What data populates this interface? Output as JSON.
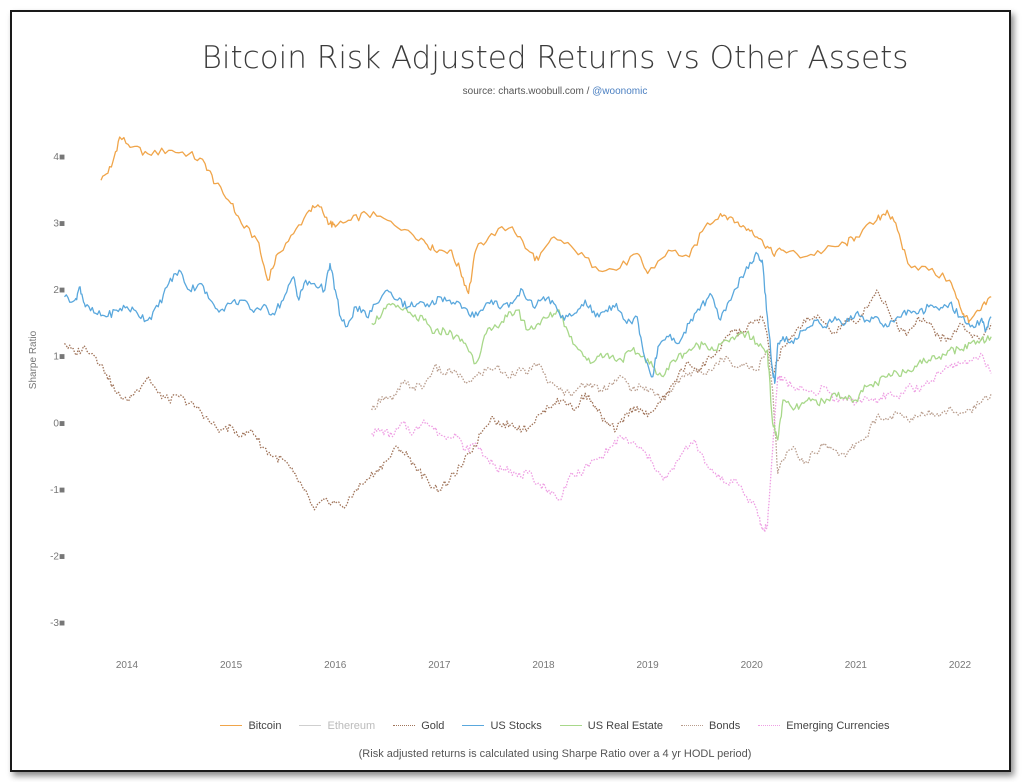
{
  "header": {
    "title": "Bitcoin Risk Adjusted Returns vs Other Assets",
    "source_prefix": "source: charts.woobull.com / ",
    "source_handle": "@woonomic"
  },
  "footnote": "(Risk adjusted returns is calculated using Sharpe Ratio over a 4 yr HODL period)",
  "chart_data": {
    "type": "line",
    "ylabel": "Sharpe Ratio",
    "ylim": [
      -3,
      4
    ],
    "y_ticks": [
      4,
      3,
      2,
      1,
      0,
      -1,
      -2,
      -3
    ],
    "y_tick_labels": [
      "4■",
      "3■",
      "2■",
      "1■",
      "0■",
      "-1■",
      "-2■",
      "-3■"
    ],
    "xlim": [
      2013.4,
      2022.3
    ],
    "x_ticks": [
      2014,
      2015,
      2016,
      2017,
      2018,
      2019,
      2020,
      2021,
      2022
    ],
    "x_tick_labels": [
      "2014",
      "2015",
      "2016",
      "2017",
      "2018",
      "2019",
      "2020",
      "2021",
      "2022"
    ],
    "series": [
      {
        "name": "Bitcoin",
        "color": "#f0a54a",
        "dash": "solid",
        "x": [
          2013.75,
          2013.85,
          2013.93,
          2014.05,
          2014.2,
          2014.4,
          2014.6,
          2014.75,
          2014.85,
          2015.0,
          2015.1,
          2015.25,
          2015.35,
          2015.45,
          2015.6,
          2015.75,
          2015.85,
          2015.95,
          2016.0,
          2016.15,
          2016.3,
          2016.5,
          2016.7,
          2016.85,
          2016.95,
          2017.1,
          2017.2,
          2017.28,
          2017.35,
          2017.5,
          2017.7,
          2017.85,
          2017.95,
          2018.1,
          2018.3,
          2018.5,
          2018.7,
          2018.9,
          2019.0,
          2019.2,
          2019.4,
          2019.55,
          2019.7,
          2019.8,
          2019.9,
          2020.0,
          2020.1,
          2020.2,
          2020.3,
          2020.5,
          2020.7,
          2020.9,
          2021.0,
          2021.2,
          2021.3,
          2021.4,
          2021.5,
          2021.7,
          2021.9,
          2022.0,
          2022.05,
          2022.1,
          2022.2,
          2022.3
        ],
        "y": [
          3.65,
          3.85,
          4.3,
          4.15,
          4.05,
          4.1,
          4.05,
          3.9,
          3.6,
          3.3,
          3.0,
          2.75,
          2.15,
          2.55,
          2.85,
          3.2,
          3.25,
          3.0,
          2.95,
          3.05,
          3.15,
          3.05,
          2.9,
          2.75,
          2.6,
          2.6,
          2.3,
          1.95,
          2.6,
          2.85,
          2.95,
          2.6,
          2.45,
          2.8,
          2.6,
          2.35,
          2.3,
          2.55,
          2.25,
          2.6,
          2.5,
          2.95,
          3.15,
          3.1,
          2.95,
          2.9,
          2.75,
          2.55,
          2.6,
          2.5,
          2.6,
          2.7,
          2.8,
          3.05,
          3.2,
          2.9,
          2.4,
          2.3,
          2.15,
          1.75,
          1.6,
          1.55,
          1.7,
          1.9
        ]
      },
      {
        "name": "Ethereum",
        "color": "#cfcfcf",
        "dash": "solid",
        "x": [],
        "y": []
      },
      {
        "name": "Gold",
        "color": "#a0745a",
        "dash": "dotted",
        "x": [
          2013.4,
          2013.5,
          2013.6,
          2013.7,
          2013.8,
          2013.9,
          2014.0,
          2014.1,
          2014.2,
          2014.3,
          2014.4,
          2014.5,
          2014.6,
          2014.7,
          2014.8,
          2014.9,
          2015.0,
          2015.1,
          2015.2,
          2015.3,
          2015.4,
          2015.5,
          2015.6,
          2015.7,
          2015.8,
          2015.9,
          2016.0,
          2016.1,
          2016.2,
          2016.3,
          2016.4,
          2016.5,
          2016.6,
          2016.7,
          2016.8,
          2016.9,
          2017.0,
          2017.1,
          2017.2,
          2017.3,
          2017.4,
          2017.5,
          2017.6,
          2017.7,
          2017.8,
          2017.9,
          2018.0,
          2018.1,
          2018.2,
          2018.3,
          2018.4,
          2018.5,
          2018.6,
          2018.7,
          2018.8,
          2018.9,
          2019.0,
          2019.1,
          2019.2,
          2019.3,
          2019.4,
          2019.5,
          2019.6,
          2019.7,
          2019.8,
          2019.9,
          2020.0,
          2020.1,
          2020.15,
          2020.2,
          2020.3,
          2020.4,
          2020.5,
          2020.6,
          2020.7,
          2020.8,
          2020.9,
          2021.0,
          2021.1,
          2021.2,
          2021.3,
          2021.4,
          2021.5,
          2021.6,
          2021.7,
          2021.8,
          2021.9,
          2022.0,
          2022.1,
          2022.2,
          2022.3
        ],
        "y": [
          1.2,
          1.05,
          1.15,
          1.0,
          0.75,
          0.45,
          0.35,
          0.5,
          0.7,
          0.45,
          0.35,
          0.4,
          0.3,
          0.2,
          0.0,
          -0.1,
          -0.05,
          -0.2,
          -0.1,
          -0.35,
          -0.5,
          -0.55,
          -0.75,
          -1.0,
          -1.3,
          -1.15,
          -1.2,
          -1.25,
          -1.0,
          -0.85,
          -0.7,
          -0.55,
          -0.35,
          -0.5,
          -0.7,
          -0.9,
          -1.0,
          -0.85,
          -0.65,
          -0.45,
          -0.15,
          0.1,
          -0.05,
          0.0,
          -0.1,
          0.0,
          0.2,
          0.3,
          0.35,
          0.2,
          0.45,
          0.25,
          0.0,
          -0.1,
          0.15,
          0.25,
          0.1,
          0.3,
          0.45,
          0.75,
          0.9,
          0.8,
          1.0,
          1.1,
          1.4,
          1.35,
          1.5,
          1.6,
          1.3,
          0.75,
          1.15,
          1.3,
          1.55,
          1.6,
          1.5,
          1.35,
          1.55,
          1.5,
          1.75,
          2.0,
          1.75,
          1.45,
          1.35,
          1.6,
          1.5,
          1.3,
          1.25,
          1.5,
          1.35,
          1.25,
          1.5
        ]
      },
      {
        "name": "US Stocks",
        "color": "#5aa8dd",
        "dash": "solid",
        "x": [
          2013.4,
          2013.5,
          2013.55,
          2013.6,
          2013.7,
          2013.8,
          2013.9,
          2014.0,
          2014.1,
          2014.2,
          2014.3,
          2014.4,
          2014.5,
          2014.6,
          2014.7,
          2014.8,
          2014.9,
          2015.0,
          2015.1,
          2015.2,
          2015.3,
          2015.4,
          2015.5,
          2015.6,
          2015.65,
          2015.7,
          2015.8,
          2015.9,
          2015.95,
          2016.0,
          2016.05,
          2016.1,
          2016.2,
          2016.3,
          2016.4,
          2016.5,
          2016.6,
          2016.7,
          2016.8,
          2016.9,
          2017.0,
          2017.1,
          2017.2,
          2017.3,
          2017.4,
          2017.5,
          2017.6,
          2017.7,
          2017.8,
          2017.9,
          2018.0,
          2018.1,
          2018.2,
          2018.3,
          2018.4,
          2018.5,
          2018.6,
          2018.7,
          2018.8,
          2018.9,
          2018.97,
          2019.05,
          2019.1,
          2019.2,
          2019.3,
          2019.4,
          2019.5,
          2019.6,
          2019.7,
          2019.8,
          2019.9,
          2020.0,
          2020.05,
          2020.1,
          2020.15,
          2020.2,
          2020.22,
          2020.25,
          2020.3,
          2020.4,
          2020.5,
          2020.6,
          2020.7,
          2020.8,
          2020.9,
          2021.0,
          2021.1,
          2021.2,
          2021.3,
          2021.4,
          2021.5,
          2021.6,
          2021.7,
          2021.8,
          2021.9,
          2022.0,
          2022.1,
          2022.2,
          2022.25,
          2022.3
        ],
        "y": [
          1.9,
          1.85,
          2.05,
          1.75,
          1.65,
          1.6,
          1.7,
          1.75,
          1.65,
          1.55,
          1.75,
          2.1,
          2.3,
          2.0,
          2.1,
          1.85,
          1.7,
          1.8,
          1.85,
          1.7,
          1.75,
          1.65,
          1.85,
          2.2,
          1.85,
          2.1,
          2.1,
          2.0,
          2.4,
          2.0,
          1.6,
          1.45,
          1.75,
          1.6,
          1.8,
          2.0,
          1.85,
          1.75,
          1.8,
          1.75,
          1.9,
          1.85,
          1.8,
          1.6,
          1.7,
          1.85,
          1.75,
          1.8,
          2.0,
          1.75,
          1.9,
          1.8,
          1.55,
          1.65,
          1.85,
          1.6,
          1.7,
          1.8,
          1.5,
          1.6,
          1.0,
          0.7,
          1.15,
          1.3,
          1.2,
          1.5,
          1.7,
          1.95,
          1.55,
          1.85,
          2.2,
          2.4,
          2.55,
          2.45,
          1.6,
          0.8,
          0.6,
          1.2,
          1.3,
          1.2,
          1.4,
          1.55,
          1.45,
          1.6,
          1.5,
          1.65,
          1.55,
          1.6,
          1.45,
          1.6,
          1.7,
          1.65,
          1.75,
          1.7,
          1.8,
          1.6,
          1.45,
          1.55,
          1.4,
          1.6
        ]
      },
      {
        "name": "US Real Estate",
        "color": "#a8d88a",
        "dash": "solid",
        "x": [
          2016.35,
          2016.45,
          2016.55,
          2016.65,
          2016.75,
          2016.85,
          2016.95,
          2017.05,
          2017.15,
          2017.25,
          2017.35,
          2017.45,
          2017.55,
          2017.65,
          2017.75,
          2017.85,
          2017.95,
          2018.05,
          2018.15,
          2018.25,
          2018.35,
          2018.45,
          2018.55,
          2018.65,
          2018.75,
          2018.85,
          2018.95,
          2019.05,
          2019.15,
          2019.25,
          2019.35,
          2019.45,
          2019.55,
          2019.65,
          2019.75,
          2019.85,
          2019.95,
          2020.05,
          2020.15,
          2020.2,
          2020.25,
          2020.3,
          2020.4,
          2020.5,
          2020.6,
          2020.7,
          2020.8,
          2020.9,
          2021.0,
          2021.1,
          2021.2,
          2021.3,
          2021.4,
          2021.5,
          2021.6,
          2021.7,
          2021.8,
          2021.9,
          2022.0,
          2022.1,
          2022.2,
          2022.3
        ],
        "y": [
          1.5,
          1.65,
          1.8,
          1.7,
          1.6,
          1.55,
          1.35,
          1.4,
          1.3,
          1.2,
          0.9,
          1.35,
          1.45,
          1.6,
          1.7,
          1.4,
          1.5,
          1.6,
          1.7,
          1.3,
          1.1,
          0.9,
          1.05,
          1.0,
          0.95,
          1.1,
          1.0,
          0.85,
          0.7,
          0.95,
          1.05,
          1.15,
          1.2,
          1.1,
          1.25,
          1.3,
          1.35,
          1.2,
          1.1,
          0.0,
          -0.25,
          0.35,
          0.2,
          0.3,
          0.35,
          0.3,
          0.45,
          0.4,
          0.35,
          0.55,
          0.6,
          0.7,
          0.75,
          0.8,
          0.9,
          0.95,
          1.0,
          1.1,
          1.1,
          1.2,
          1.25,
          1.3
        ]
      },
      {
        "name": "Bonds",
        "color": "#b89c8c",
        "dash": "dotted",
        "x": [
          2016.35,
          2016.45,
          2016.55,
          2016.65,
          2016.75,
          2016.85,
          2016.95,
          2017.05,
          2017.15,
          2017.25,
          2017.35,
          2017.45,
          2017.55,
          2017.65,
          2017.75,
          2017.85,
          2017.95,
          2018.05,
          2018.15,
          2018.25,
          2018.35,
          2018.45,
          2018.55,
          2018.65,
          2018.75,
          2018.85,
          2018.95,
          2019.05,
          2019.15,
          2019.25,
          2019.35,
          2019.45,
          2019.55,
          2019.65,
          2019.75,
          2019.85,
          2019.95,
          2020.05,
          2020.15,
          2020.2,
          2020.25,
          2020.3,
          2020.4,
          2020.5,
          2020.6,
          2020.7,
          2020.8,
          2020.9,
          2021.0,
          2021.1,
          2021.2,
          2021.3,
          2021.4,
          2021.5,
          2021.6,
          2021.7,
          2021.8,
          2021.9,
          2022.0,
          2022.1,
          2022.2,
          2022.3
        ],
        "y": [
          0.2,
          0.4,
          0.35,
          0.6,
          0.55,
          0.55,
          0.85,
          0.75,
          0.8,
          0.6,
          0.7,
          0.8,
          0.85,
          0.7,
          0.8,
          0.75,
          0.9,
          0.6,
          0.5,
          0.45,
          0.55,
          0.6,
          0.5,
          0.6,
          0.7,
          0.5,
          0.55,
          0.5,
          0.35,
          0.55,
          0.7,
          0.8,
          0.75,
          0.9,
          1.0,
          0.85,
          0.9,
          0.8,
          1.1,
          0.5,
          -0.75,
          -0.55,
          -0.35,
          -0.6,
          -0.45,
          -0.3,
          -0.4,
          -0.5,
          -0.3,
          -0.2,
          0.1,
          0.05,
          0.15,
          0.05,
          0.1,
          0.2,
          0.1,
          0.25,
          0.15,
          0.2,
          0.3,
          0.45
        ]
      },
      {
        "name": "Emerging Currencies",
        "color": "#ee9ee3",
        "dash": "dotted",
        "x": [
          2016.35,
          2016.45,
          2016.55,
          2016.65,
          2016.75,
          2016.85,
          2016.95,
          2017.05,
          2017.15,
          2017.25,
          2017.35,
          2017.45,
          2017.55,
          2017.65,
          2017.75,
          2017.85,
          2017.95,
          2018.05,
          2018.15,
          2018.25,
          2018.35,
          2018.45,
          2018.55,
          2018.65,
          2018.75,
          2018.85,
          2018.95,
          2019.05,
          2019.15,
          2019.25,
          2019.35,
          2019.45,
          2019.55,
          2019.65,
          2019.75,
          2019.85,
          2019.95,
          2020.05,
          2020.1,
          2020.15,
          2020.2,
          2020.25,
          2020.3,
          2020.4,
          2020.5,
          2020.6,
          2020.7,
          2020.8,
          2020.9,
          2021.0,
          2021.1,
          2021.2,
          2021.3,
          2021.4,
          2021.5,
          2021.6,
          2021.7,
          2021.8,
          2021.9,
          2022.0,
          2022.1,
          2022.2,
          2022.3
        ],
        "y": [
          -0.15,
          -0.1,
          -0.2,
          0.0,
          -0.15,
          0.05,
          -0.1,
          -0.2,
          -0.15,
          -0.4,
          -0.3,
          -0.5,
          -0.7,
          -0.65,
          -0.8,
          -0.75,
          -0.9,
          -1.0,
          -1.15,
          -0.8,
          -0.75,
          -0.6,
          -0.5,
          -0.35,
          -0.2,
          -0.3,
          -0.4,
          -0.6,
          -0.85,
          -0.7,
          -0.4,
          -0.25,
          -0.6,
          -0.75,
          -0.9,
          -0.85,
          -1.1,
          -1.3,
          -1.6,
          -1.55,
          -0.4,
          0.7,
          0.65,
          0.55,
          0.5,
          0.45,
          0.55,
          0.35,
          0.4,
          0.3,
          0.4,
          0.3,
          0.45,
          0.4,
          0.55,
          0.5,
          0.6,
          0.75,
          0.85,
          0.9,
          0.95,
          1.05,
          0.75
        ]
      }
    ]
  }
}
